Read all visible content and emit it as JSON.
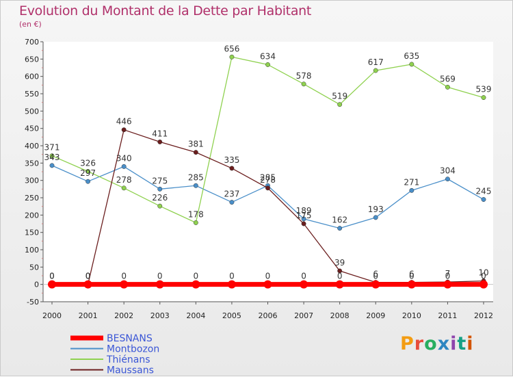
{
  "header": {
    "title": "Evolution du Montant de la Dette par Habitant",
    "subtitle": "(en €)"
  },
  "brand": {
    "text": "Proxiti",
    "colors": [
      "#f39c12",
      "#e74c3c",
      "#27ae60",
      "#2e86c1",
      "#8e44ad",
      "#16a085",
      "#d35400"
    ]
  },
  "chart_data": {
    "type": "line",
    "title": "Evolution du Montant de la Dette par Habitant",
    "subtitle": "(en €)",
    "x": [
      "2000",
      "2001",
      "2002",
      "2003",
      "2004",
      "2005",
      "2006",
      "2007",
      "2008",
      "2009",
      "2010",
      "2011",
      "2012"
    ],
    "ylim": [
      -50,
      700
    ],
    "yticks": [
      -50,
      0,
      50,
      100,
      150,
      200,
      250,
      300,
      350,
      400,
      450,
      500,
      550,
      600,
      650,
      700
    ],
    "grid": false,
    "legend_position": "bottom-left",
    "series": [
      {
        "name": "BESNANS",
        "color": "#ff0000",
        "values": [
          0,
          0,
          0,
          0,
          0,
          0,
          0,
          0,
          0,
          0,
          0,
          0,
          0
        ]
      },
      {
        "name": "Montbozon",
        "color": "#4a8fc9",
        "values": [
          343,
          297,
          340,
          275,
          285,
          237,
          285,
          189,
          162,
          193,
          271,
          304,
          245
        ]
      },
      {
        "name": "Thiénans",
        "color": "#8fd14f",
        "values": [
          371,
          326,
          278,
          226,
          178,
          656,
          634,
          578,
          519,
          617,
          635,
          569,
          539
        ]
      },
      {
        "name": "Maussans",
        "color": "#6b1e1e",
        "values": [
          0,
          0,
          446,
          411,
          381,
          335,
          278,
          175,
          39,
          6,
          6,
          7,
          10
        ]
      }
    ]
  }
}
